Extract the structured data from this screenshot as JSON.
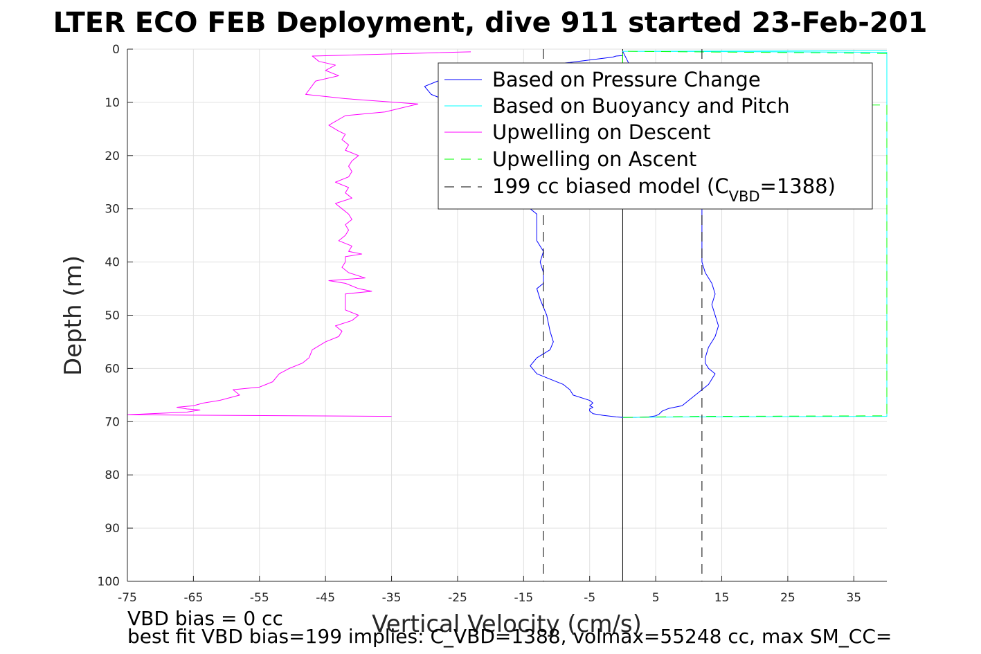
{
  "chart_data": {
    "type": "line",
    "title": "LTER ECO FEB Deployment, dive 911 started 23-Feb-201",
    "xlabel": "Vertical Velocity (cm/s)",
    "ylabel": "Depth (m)",
    "xlim": [
      -75,
      40
    ],
    "ylim": [
      0,
      100
    ],
    "y_reversed": true,
    "grid": true,
    "legend_position": "top-right",
    "x_ticks": [
      "-75",
      "-65",
      "-55",
      "-45",
      "-35",
      "-25",
      "-15",
      "-5",
      "5",
      "15",
      "25",
      "35"
    ],
    "y_ticks": [
      "0",
      "10",
      "20",
      "30",
      "40",
      "50",
      "60",
      "70",
      "80",
      "90",
      "100"
    ],
    "legend": {
      "pressure": "Based on Pressure Change",
      "buoyancy": "Based on Buoyancy and Pitch",
      "up_descent": "Upwelling on Descent",
      "up_ascent": "Upwelling on Ascent",
      "model_prefix": "199 cc biased model (C",
      "model_sub": "VBD",
      "model_suffix": "=1388)"
    },
    "series": [
      {
        "name": "Based on Pressure Change",
        "color": "#0000ff",
        "style": "solid",
        "points": [
          [
            0,
            1.2
          ],
          [
            -1,
            1.3
          ],
          [
            -1.5,
            1.5
          ],
          [
            -8,
            2.5
          ],
          [
            -20,
            4
          ],
          [
            -28,
            6
          ],
          [
            -30,
            7
          ],
          [
            -29,
            8.5
          ],
          [
            -27,
            9.5
          ],
          [
            -26,
            10
          ],
          [
            -16,
            27
          ],
          [
            -14,
            30
          ],
          [
            -13,
            31
          ],
          [
            -13,
            36
          ],
          [
            -12,
            38
          ],
          [
            -12.5,
            40
          ],
          [
            -12,
            42
          ],
          [
            -12,
            44
          ],
          [
            -13,
            45
          ],
          [
            -12.5,
            47
          ],
          [
            -11.5,
            50
          ],
          [
            -11,
            53
          ],
          [
            -10.5,
            55
          ],
          [
            -11,
            56.5
          ],
          [
            -13,
            58
          ],
          [
            -14,
            59.5
          ],
          [
            -13,
            61
          ],
          [
            -11,
            62
          ],
          [
            -9,
            63
          ],
          [
            -8,
            64
          ],
          [
            -7.5,
            65
          ],
          [
            -5,
            66
          ],
          [
            -4.5,
            66.5
          ],
          [
            -5,
            67
          ],
          [
            -4.5,
            67.3
          ],
          [
            -5,
            67.6
          ],
          [
            -5,
            68
          ],
          [
            -4.5,
            68.5
          ],
          [
            -3,
            68.8
          ],
          [
            -1,
            69.1
          ],
          [
            0,
            69.2
          ],
          [
            2,
            69.2
          ],
          [
            4,
            69.1
          ],
          [
            5,
            68.9
          ],
          [
            5.5,
            68.6
          ],
          [
            6,
            68
          ],
          [
            7,
            67.5
          ],
          [
            9,
            67
          ],
          [
            10,
            66
          ],
          [
            11,
            65
          ],
          [
            12,
            64
          ],
          [
            13,
            63
          ],
          [
            14,
            61
          ],
          [
            13,
            60
          ],
          [
            12.5,
            59
          ],
          [
            12.5,
            58
          ],
          [
            13,
            56
          ],
          [
            14,
            54
          ],
          [
            14.5,
            52
          ],
          [
            14,
            50
          ],
          [
            13.5,
            48
          ],
          [
            14,
            46
          ],
          [
            13.5,
            44
          ],
          [
            12.5,
            42
          ],
          [
            12,
            40
          ],
          [
            12,
            38
          ],
          [
            12,
            36
          ],
          [
            12,
            34
          ],
          [
            12,
            32
          ],
          [
            12,
            30
          ],
          [
            0,
            0.4
          ]
        ]
      },
      {
        "name": "Based on Buoyancy and Pitch",
        "color": "#00ffff",
        "style": "solid",
        "points": [
          [
            40,
            0.3
          ],
          [
            0,
            0.4
          ],
          [
            40,
            0.6
          ],
          [
            40,
            69
          ],
          [
            12,
            69.1
          ],
          [
            0,
            69.2
          ]
        ]
      },
      {
        "name": "Upwelling on Descent",
        "color": "#ff00ff",
        "style": "solid",
        "points": [
          [
            -23,
            0.5
          ],
          [
            -47,
            1.3
          ],
          [
            -46,
            2.3
          ],
          [
            -43.5,
            3
          ],
          [
            -45,
            4
          ],
          [
            -43,
            5
          ],
          [
            -46.5,
            6
          ],
          [
            -48,
            8.5
          ],
          [
            -42,
            9.3
          ],
          [
            -31,
            10.3
          ],
          [
            -36,
            11.8
          ],
          [
            -42,
            12.5
          ],
          [
            -44.5,
            14.3
          ],
          [
            -43,
            15.4
          ],
          [
            -42,
            16
          ],
          [
            -42.5,
            17
          ],
          [
            -41.5,
            18
          ],
          [
            -42,
            19
          ],
          [
            -40,
            20
          ],
          [
            -41,
            21
          ],
          [
            -41.5,
            22
          ],
          [
            -41,
            23
          ],
          [
            -41.5,
            24
          ],
          [
            -43.5,
            25
          ],
          [
            -41.5,
            26
          ],
          [
            -42,
            27
          ],
          [
            -41,
            28
          ],
          [
            -43.5,
            29
          ],
          [
            -42.5,
            30
          ],
          [
            -41.5,
            31
          ],
          [
            -41,
            32
          ],
          [
            -42,
            33
          ],
          [
            -41.5,
            34
          ],
          [
            -42,
            35
          ],
          [
            -43,
            36
          ],
          [
            -41,
            37
          ],
          [
            -41.5,
            38
          ],
          [
            -39.5,
            38.5
          ],
          [
            -42,
            39
          ],
          [
            -42,
            40
          ],
          [
            -42.5,
            41
          ],
          [
            -41.5,
            42
          ],
          [
            -39,
            43
          ],
          [
            -44.5,
            43.5
          ],
          [
            -42,
            44
          ],
          [
            -40,
            45
          ],
          [
            -38,
            45.5
          ],
          [
            -42,
            46
          ],
          [
            -42,
            47
          ],
          [
            -42,
            48
          ],
          [
            -42,
            49
          ],
          [
            -40,
            50
          ],
          [
            -41,
            51
          ],
          [
            -43.5,
            52
          ],
          [
            -42.5,
            53
          ],
          [
            -43,
            54
          ],
          [
            -45,
            55
          ],
          [
            -47,
            56.5
          ],
          [
            -47.5,
            58
          ],
          [
            -48.5,
            59
          ],
          [
            -50.5,
            60
          ],
          [
            -52,
            61
          ],
          [
            -53,
            62.5
          ],
          [
            -55,
            63.5
          ],
          [
            -59,
            64
          ],
          [
            -58,
            65
          ],
          [
            -61,
            66
          ],
          [
            -63.5,
            66.5
          ],
          [
            -65,
            67
          ],
          [
            -67.5,
            67.3
          ],
          [
            -66,
            67.6
          ],
          [
            -64,
            67.8
          ],
          [
            -66,
            68.2
          ],
          [
            -75,
            68.7
          ],
          [
            -35,
            69
          ]
        ]
      },
      {
        "name": "Upwelling on Ascent",
        "color": "#00ff00",
        "style": "dashed",
        "points": [
          [
            40,
            0.8
          ],
          [
            0,
            0.4
          ],
          [
            0,
            10.4
          ],
          [
            40,
            10.5
          ],
          [
            40,
            68.9
          ],
          [
            12,
            69
          ],
          [
            0,
            69.2
          ]
        ]
      },
      {
        "name": "199 cc biased model",
        "color": "#000000",
        "style": "dashed",
        "segments": [
          [
            [
              -12,
              0
            ],
            [
              -12,
              100
            ]
          ],
          [
            [
              12,
              0
            ],
            [
              12,
              100
            ]
          ]
        ]
      }
    ],
    "reference_lines": [
      {
        "x": 0,
        "color": "#000000",
        "style": "solid"
      }
    ]
  },
  "footer": {
    "line1": "VBD bias = 0 cc",
    "line2": "best fit VBD bias=199 implies: C_VBD=1388, volmax=55248 cc, max SM_CC="
  }
}
